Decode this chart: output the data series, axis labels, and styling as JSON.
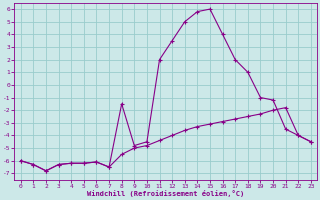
{
  "xlabel": "Windchill (Refroidissement éolien,°C)",
  "bg_color": "#cce8e8",
  "line_color": "#880088",
  "grid_color": "#99cccc",
  "x_values": [
    0,
    1,
    2,
    3,
    4,
    5,
    6,
    7,
    8,
    9,
    10,
    11,
    12,
    13,
    14,
    15,
    16,
    17,
    18,
    19,
    20,
    21,
    22,
    23
  ],
  "line1_y": [
    -6.0,
    -6.3,
    -6.8,
    -6.3,
    -6.2,
    -6.2,
    -6.1,
    -6.5,
    -1.5,
    -4.8,
    -4.5,
    2.0,
    3.5,
    5.0,
    5.8,
    6.0,
    4.0,
    2.0,
    1.0,
    -1.0,
    -1.2,
    -3.5,
    -4.0,
    -4.5
  ],
  "line2_y": [
    -6.0,
    -6.3,
    -6.8,
    -6.3,
    -6.2,
    -6.2,
    -6.1,
    -6.5,
    -5.5,
    -5.0,
    -4.8,
    -4.4,
    -4.0,
    -3.6,
    -3.3,
    -3.1,
    -2.9,
    -2.7,
    -2.5,
    -2.3,
    -2.0,
    -1.8,
    -4.0,
    -4.5
  ],
  "ylim": [
    -7.5,
    6.5
  ],
  "xlim": [
    -0.5,
    23.5
  ],
  "yticks": [
    -7,
    -6,
    -5,
    -4,
    -3,
    -2,
    -1,
    0,
    1,
    2,
    3,
    4,
    5,
    6
  ],
  "xticks": [
    0,
    1,
    2,
    3,
    4,
    5,
    6,
    7,
    8,
    9,
    10,
    11,
    12,
    13,
    14,
    15,
    16,
    17,
    18,
    19,
    20,
    21,
    22,
    23
  ]
}
